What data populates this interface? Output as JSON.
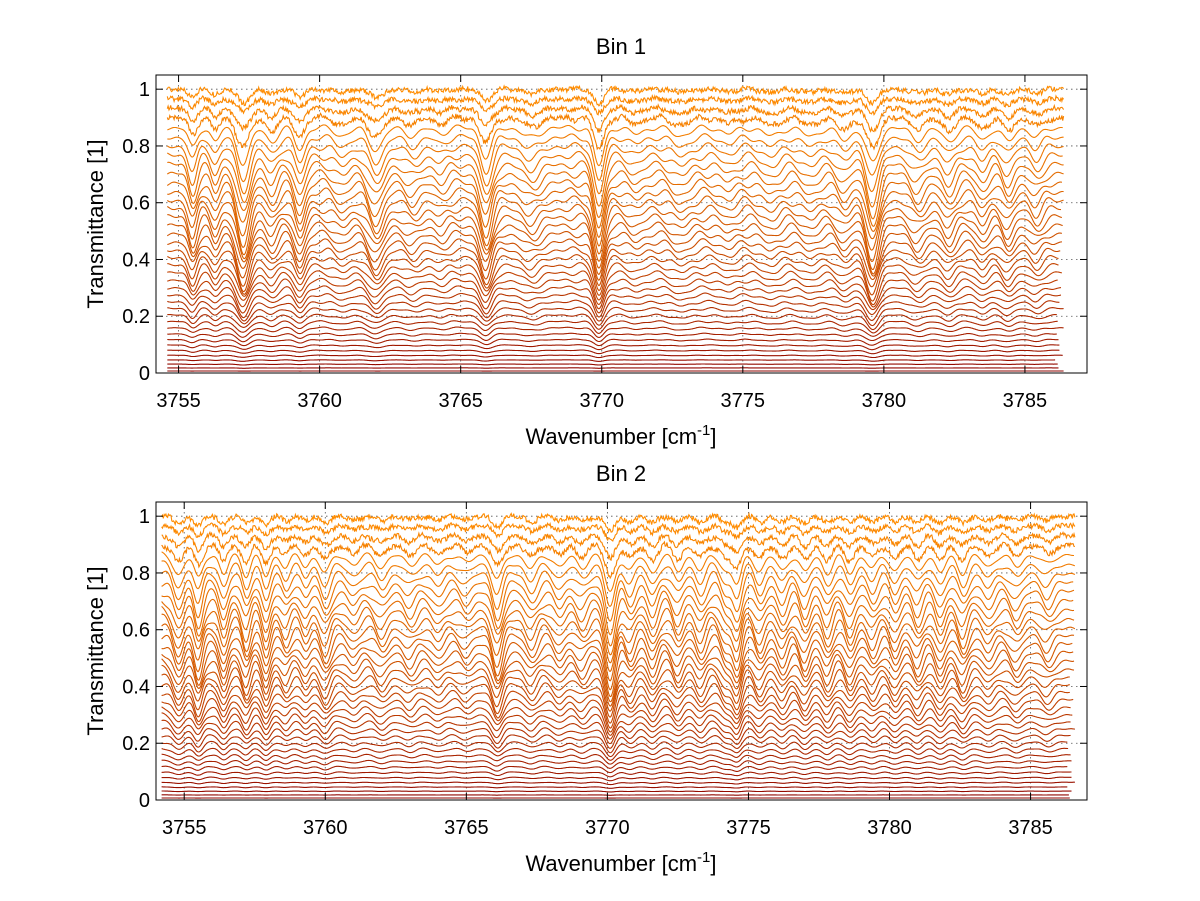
{
  "figure": {
    "background": "#ffffff",
    "spectrum_color_low": "#8b0000",
    "spectrum_color_high": "#ff8c00"
  },
  "chart_data": [
    {
      "type": "line",
      "title": "Bin 1",
      "xlabel": "Wavenumber [cm",
      "xlabel_sup": "-1",
      "xlabel_end": "]",
      "ylabel": "Transmittance [1]",
      "xlim": [
        3754.2,
        3787.2
      ],
      "ylim": [
        0,
        1.05
      ],
      "xticks": [
        3755,
        3760,
        3765,
        3770,
        3775,
        3780,
        3785
      ],
      "xtick_labels": [
        "3755",
        "3760",
        "3765",
        "3770",
        "3775",
        "3780",
        "3785"
      ],
      "yticks": [
        0,
        0.2,
        0.4,
        0.6,
        0.8,
        1
      ],
      "ytick_labels": [
        "0",
        "0.2",
        "0.4",
        "0.6",
        "0.8",
        "1"
      ],
      "grid": true,
      "series_count": 40,
      "x_range": [
        3754.6,
        3786.4
      ],
      "level_top": 1.0,
      "level_bottom": 0.0,
      "absorption_lines": [
        {
          "x": 3755.5,
          "depth": 0.5,
          "width": 0.15
        },
        {
          "x": 3756.3,
          "depth": 0.35,
          "width": 0.15
        },
        {
          "x": 3757.3,
          "depth": 0.9,
          "width": 0.22
        },
        {
          "x": 3758.3,
          "depth": 0.35,
          "width": 0.2
        },
        {
          "x": 3759.3,
          "depth": 0.55,
          "width": 0.18
        },
        {
          "x": 3760.8,
          "depth": 0.2,
          "width": 0.25
        },
        {
          "x": 3762.0,
          "depth": 0.55,
          "width": 0.25
        },
        {
          "x": 3763.3,
          "depth": 0.2,
          "width": 0.25
        },
        {
          "x": 3764.3,
          "depth": 0.15,
          "width": 0.2
        },
        {
          "x": 3765.9,
          "depth": 0.75,
          "width": 0.2
        },
        {
          "x": 3767.5,
          "depth": 0.25,
          "width": 0.3
        },
        {
          "x": 3769.9,
          "depth": 0.95,
          "width": 0.18
        },
        {
          "x": 3771.2,
          "depth": 0.15,
          "width": 0.25
        },
        {
          "x": 3772.8,
          "depth": 0.2,
          "width": 0.3
        },
        {
          "x": 3774.5,
          "depth": 0.15,
          "width": 0.25
        },
        {
          "x": 3776.0,
          "depth": 0.2,
          "width": 0.3
        },
        {
          "x": 3777.4,
          "depth": 0.2,
          "width": 0.3
        },
        {
          "x": 3778.6,
          "depth": 0.3,
          "width": 0.25
        },
        {
          "x": 3779.6,
          "depth": 0.9,
          "width": 0.22
        },
        {
          "x": 3781.2,
          "depth": 0.3,
          "width": 0.25
        },
        {
          "x": 3782.3,
          "depth": 0.35,
          "width": 0.22
        },
        {
          "x": 3783.5,
          "depth": 0.3,
          "width": 0.2
        },
        {
          "x": 3784.4,
          "depth": 0.35,
          "width": 0.2
        },
        {
          "x": 3785.4,
          "depth": 0.25,
          "width": 0.2
        }
      ]
    },
    {
      "type": "line",
      "title": "Bin 2",
      "xlabel": "Wavenumber [cm",
      "xlabel_sup": "-1",
      "xlabel_end": "]",
      "ylabel": "Transmittance [1]",
      "xlim": [
        3754.0,
        3787.0
      ],
      "ylim": [
        0,
        1.05
      ],
      "xticks": [
        3755,
        3760,
        3765,
        3770,
        3775,
        3780,
        3785
      ],
      "xtick_labels": [
        "3755",
        "3760",
        "3765",
        "3770",
        "3775",
        "3780",
        "3785"
      ],
      "yticks": [
        0,
        0.2,
        0.4,
        0.6,
        0.8,
        1
      ],
      "ytick_labels": [
        "0",
        "0.2",
        "0.4",
        "0.6",
        "0.8",
        "1"
      ],
      "grid": true,
      "series_count": 40,
      "x_range": [
        3754.2,
        3786.6
      ],
      "level_top": 1.0,
      "level_bottom": 0.0,
      "absorption_lines": [
        {
          "x": 3754.8,
          "depth": 0.5,
          "width": 0.18
        },
        {
          "x": 3755.5,
          "depth": 0.6,
          "width": 0.15
        },
        {
          "x": 3756.4,
          "depth": 0.5,
          "width": 0.15
        },
        {
          "x": 3757.2,
          "depth": 0.5,
          "width": 0.15
        },
        {
          "x": 3757.9,
          "depth": 0.55,
          "width": 0.15
        },
        {
          "x": 3758.6,
          "depth": 0.3,
          "width": 0.15
        },
        {
          "x": 3759.3,
          "depth": 0.3,
          "width": 0.15
        },
        {
          "x": 3760.0,
          "depth": 0.45,
          "width": 0.18
        },
        {
          "x": 3761.0,
          "depth": 0.25,
          "width": 0.2
        },
        {
          "x": 3762.0,
          "depth": 0.3,
          "width": 0.2
        },
        {
          "x": 3763.0,
          "depth": 0.25,
          "width": 0.2
        },
        {
          "x": 3764.0,
          "depth": 0.25,
          "width": 0.2
        },
        {
          "x": 3765.0,
          "depth": 0.2,
          "width": 0.2
        },
        {
          "x": 3766.1,
          "depth": 0.65,
          "width": 0.18
        },
        {
          "x": 3767.3,
          "depth": 0.35,
          "width": 0.2
        },
        {
          "x": 3768.3,
          "depth": 0.3,
          "width": 0.2
        },
        {
          "x": 3769.1,
          "depth": 0.3,
          "width": 0.2
        },
        {
          "x": 3770.1,
          "depth": 0.95,
          "width": 0.18
        },
        {
          "x": 3770.8,
          "depth": 0.4,
          "width": 0.18
        },
        {
          "x": 3771.6,
          "depth": 0.45,
          "width": 0.18
        },
        {
          "x": 3772.5,
          "depth": 0.4,
          "width": 0.18
        },
        {
          "x": 3773.3,
          "depth": 0.4,
          "width": 0.18
        },
        {
          "x": 3774.2,
          "depth": 0.4,
          "width": 0.18
        },
        {
          "x": 3774.6,
          "depth": 0.7,
          "width": 0.16
        },
        {
          "x": 3775.4,
          "depth": 0.4,
          "width": 0.18
        },
        {
          "x": 3776.2,
          "depth": 0.4,
          "width": 0.18
        },
        {
          "x": 3777.0,
          "depth": 0.45,
          "width": 0.18
        },
        {
          "x": 3777.8,
          "depth": 0.45,
          "width": 0.18
        },
        {
          "x": 3778.6,
          "depth": 0.45,
          "width": 0.18
        },
        {
          "x": 3779.4,
          "depth": 0.35,
          "width": 0.18
        },
        {
          "x": 3780.2,
          "depth": 0.4,
          "width": 0.18
        },
        {
          "x": 3781.0,
          "depth": 0.4,
          "width": 0.18
        },
        {
          "x": 3781.8,
          "depth": 0.45,
          "width": 0.18
        },
        {
          "x": 3782.6,
          "depth": 0.45,
          "width": 0.18
        },
        {
          "x": 3783.5,
          "depth": 0.3,
          "width": 0.2
        },
        {
          "x": 3784.5,
          "depth": 0.3,
          "width": 0.2
        },
        {
          "x": 3785.6,
          "depth": 0.25,
          "width": 0.2
        }
      ]
    }
  ]
}
